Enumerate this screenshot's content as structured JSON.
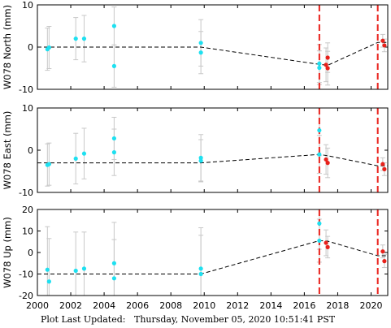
{
  "footer": {
    "label": "Plot Last Updated:",
    "timestamp": "Thursday, November 05, 2020 10:51:41 PST"
  },
  "chart_data": [
    {
      "type": "scatter",
      "ylabel": "W078 North (mm)",
      "ylim": [
        -10,
        10
      ],
      "yticks": [
        -10,
        0,
        10
      ],
      "xlim": [
        2000,
        2021
      ],
      "xticks": [
        2000,
        2002,
        2004,
        2006,
        2008,
        2010,
        2012,
        2014,
        2016,
        2018,
        2020
      ],
      "show_xticklabels": false,
      "series": [
        {
          "color": "#1ee0f0",
          "points": [
            {
              "x": 2000.6,
              "y": -0.5,
              "err": 5.0
            },
            {
              "x": 2000.7,
              "y": -0.1,
              "err": 5.0
            },
            {
              "x": 2002.3,
              "y": 2.0,
              "err": 5.0
            },
            {
              "x": 2002.8,
              "y": 2.0,
              "err": 5.5
            },
            {
              "x": 2004.6,
              "y": 5.0,
              "err": 4.5
            },
            {
              "x": 2004.6,
              "y": -4.5,
              "err": 5.0
            },
            {
              "x": 2009.8,
              "y": 1.0,
              "err": 5.5
            },
            {
              "x": 2009.8,
              "y": -1.3,
              "err": 5.0
            },
            {
              "x": 2016.9,
              "y": -3.9,
              "err": 4.5
            },
            {
              "x": 2016.9,
              "y": -4.9,
              "err": 4.0
            }
          ]
        },
        {
          "color": "#e8201a",
          "points": [
            {
              "x": 2017.3,
              "y": -4.2,
              "err": 4.0
            },
            {
              "x": 2017.4,
              "y": -2.5,
              "err": 3.5
            },
            {
              "x": 2017.4,
              "y": -5.0,
              "err": 4.0
            },
            {
              "x": 2020.7,
              "y": 1.5,
              "err": 1.5
            },
            {
              "x": 2020.8,
              "y": 0.4,
              "err": 1.5
            }
          ]
        }
      ],
      "model_line": [
        [
          2000,
          0
        ],
        [
          2009.8,
          0
        ],
        [
          2016.9,
          -4.1
        ],
        [
          2017.4,
          -4.3
        ],
        [
          2020.4,
          1.1
        ],
        [
          2021,
          1.1
        ]
      ],
      "event_lines": [
        2016.9,
        2020.4
      ]
    },
    {
      "type": "scatter",
      "ylabel": "W078 East (mm)",
      "ylim": [
        -10,
        10
      ],
      "yticks": [
        -10,
        0,
        10
      ],
      "xlim": [
        2000,
        2021
      ],
      "xticks": [
        2000,
        2002,
        2004,
        2006,
        2008,
        2010,
        2012,
        2014,
        2016,
        2018,
        2020
      ],
      "show_xticklabels": false,
      "series": [
        {
          "color": "#1ee0f0",
          "points": [
            {
              "x": 2000.6,
              "y": -3.5,
              "err": 5.0
            },
            {
              "x": 2000.7,
              "y": -3.3,
              "err": 5.0
            },
            {
              "x": 2002.3,
              "y": -2.0,
              "err": 6.0
            },
            {
              "x": 2002.8,
              "y": -0.8,
              "err": 6.0
            },
            {
              "x": 2004.6,
              "y": 2.8,
              "err": 5.0
            },
            {
              "x": 2004.6,
              "y": -0.5,
              "err": 5.5
            },
            {
              "x": 2009.8,
              "y": -1.8,
              "err": 5.5
            },
            {
              "x": 2009.8,
              "y": -2.5,
              "err": 5.0
            },
            {
              "x": 2016.9,
              "y": 4.7,
              "err": 6.0
            },
            {
              "x": 2016.9,
              "y": -1.0,
              "err": 4.5
            }
          ]
        },
        {
          "color": "#e8201a",
          "points": [
            {
              "x": 2017.3,
              "y": -2.2,
              "err": 3.5
            },
            {
              "x": 2017.4,
              "y": -3.0,
              "err": 3.5
            },
            {
              "x": 2020.7,
              "y": -3.3,
              "err": 1.5
            },
            {
              "x": 2020.8,
              "y": -4.5,
              "err": 1.5
            }
          ]
        }
      ],
      "model_line": [
        [
          2000,
          -3.0
        ],
        [
          2009.8,
          -3.0
        ],
        [
          2016.9,
          -1.0
        ],
        [
          2017.4,
          -1.3
        ],
        [
          2020.4,
          -3.7
        ],
        [
          2021,
          -3.7
        ]
      ],
      "event_lines": [
        2016.9,
        2020.4
      ]
    },
    {
      "type": "scatter",
      "ylabel": "W078 Up (mm)",
      "ylim": [
        -20,
        20
      ],
      "yticks": [
        -20,
        -10,
        0,
        10,
        20
      ],
      "xlim": [
        2000,
        2021
      ],
      "xticks": [
        2000,
        2002,
        2004,
        2006,
        2008,
        2010,
        2012,
        2014,
        2016,
        2018,
        2020
      ],
      "show_xticklabels": true,
      "series": [
        {
          "color": "#1ee0f0",
          "points": [
            {
              "x": 2000.6,
              "y": -8.0,
              "err": 20.0
            },
            {
              "x": 2000.7,
              "y": -13.5,
              "err": 20.0
            },
            {
              "x": 2002.3,
              "y": -8.5,
              "err": 18.0
            },
            {
              "x": 2002.8,
              "y": -7.5,
              "err": 17.0
            },
            {
              "x": 2004.6,
              "y": -5.0,
              "err": 19.0
            },
            {
              "x": 2004.6,
              "y": -12.0,
              "err": 18.0
            },
            {
              "x": 2009.8,
              "y": -7.5,
              "err": 19.0
            },
            {
              "x": 2009.8,
              "y": -10.0,
              "err": 18.0
            },
            {
              "x": 2016.9,
              "y": 13.5,
              "err": 12.0
            },
            {
              "x": 2016.9,
              "y": 5.5,
              "err": 10.0
            }
          ]
        },
        {
          "color": "#e8201a",
          "points": [
            {
              "x": 2017.3,
              "y": 4.5,
              "err": 6.0
            },
            {
              "x": 2017.4,
              "y": 2.5,
              "err": 5.0
            },
            {
              "x": 2020.7,
              "y": 0.5,
              "err": 3.0
            },
            {
              "x": 2020.8,
              "y": -4.0,
              "err": 3.0
            }
          ]
        }
      ],
      "model_line": [
        [
          2000,
          -10.0
        ],
        [
          2009.8,
          -10.0
        ],
        [
          2016.9,
          5.5
        ],
        [
          2017.4,
          5.3
        ],
        [
          2020.4,
          -1.5
        ],
        [
          2021,
          -1.5
        ]
      ],
      "event_lines": [
        2016.9,
        2020.4
      ]
    }
  ]
}
